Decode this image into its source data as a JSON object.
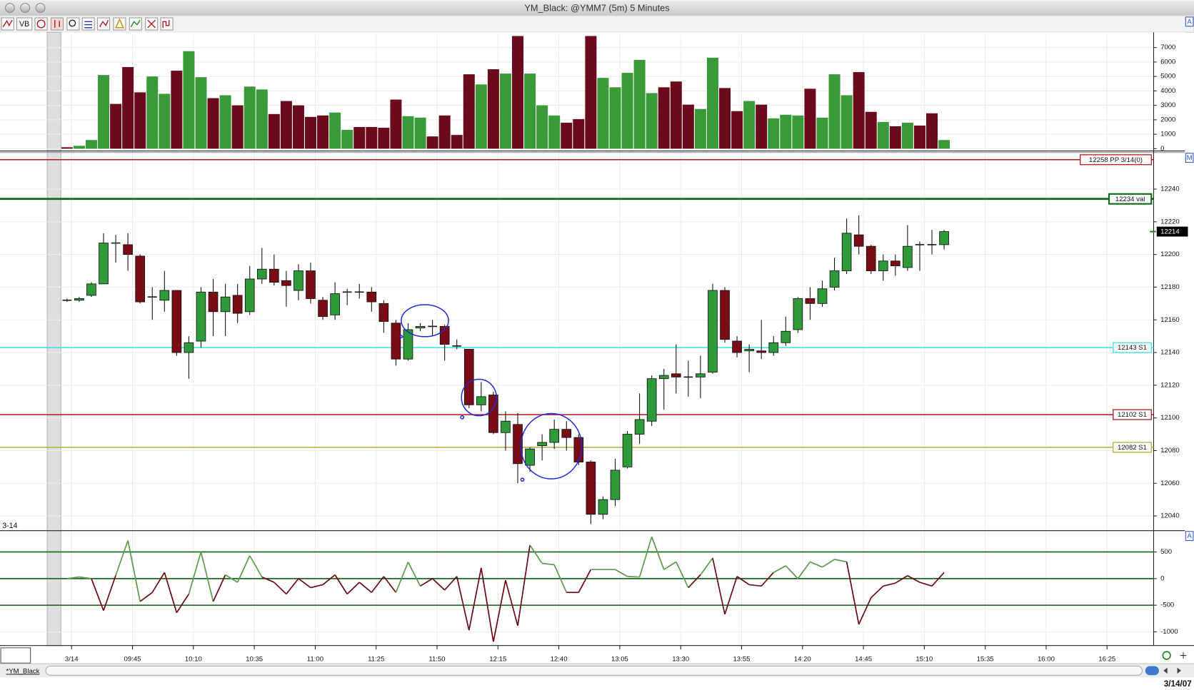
{
  "window": {
    "title": "YM_Black: @YMM7 (5m) 5 Minutes",
    "toolbar_label": "VB",
    "tab": "*YM_Black",
    "date": "3/14/07",
    "session_marker": "3-14",
    "panel_buttons": [
      "A",
      "M",
      "A"
    ]
  },
  "chart_data": [
    {
      "type": "bar",
      "xlim": [
        -0.5,
        89.2
      ],
      "ylim": [
        0,
        7900
      ],
      "yticks": [
        0,
        1000,
        2000,
        3000,
        4000,
        5000,
        6000,
        7000
      ],
      "grid": true,
      "values": [
        100,
        200,
        600,
        5100,
        3100,
        5650,
        3900,
        5000,
        3800,
        5400,
        6750,
        4950,
        3500,
        3700,
        3000,
        4300,
        4100,
        2400,
        3300,
        3000,
        2200,
        2300,
        2500,
        1300,
        1500,
        1500,
        1450,
        3400,
        2250,
        2150,
        850,
        2300,
        950,
        5150,
        4450,
        5500,
        5200,
        7800,
        5200,
        3000,
        2300,
        1800,
        2050,
        7800,
        4900,
        4250,
        5250,
        6150,
        3850,
        4250,
        4650,
        3050,
        2750,
        6300,
        4200,
        2600,
        3300,
        3050,
        2100,
        2350,
        2300,
        4150,
        2150,
        5150,
        3700,
        5300,
        2550,
        1850,
        1550,
        1800,
        1600,
        2450,
        600
      ],
      "colors": [
        "#6a0a1a",
        "#3a9a3a",
        "#3a9a3a",
        "#3a9a3a",
        "#6a0a1a",
        "#6a0a1a",
        "#6a0a1a",
        "#3a9a3a",
        "#3a9a3a",
        "#6a0a1a",
        "#3a9a3a",
        "#3a9a3a",
        "#6a0a1a",
        "#3a9a3a",
        "#6a0a1a",
        "#3a9a3a",
        "#3a9a3a",
        "#6a0a1a",
        "#6a0a1a",
        "#6a0a1a",
        "#6a0a1a",
        "#6a0a1a",
        "#3a9a3a",
        "#3a9a3a",
        "#6a0a1a",
        "#6a0a1a",
        "#6a0a1a",
        "#6a0a1a",
        "#3a9a3a",
        "#3a9a3a",
        "#6a0a1a",
        "#6a0a1a",
        "#6a0a1a",
        "#6a0a1a",
        "#3a9a3a",
        "#6a0a1a",
        "#3a9a3a",
        "#6a0a1a",
        "#3a9a3a",
        "#3a9a3a",
        "#3a9a3a",
        "#6a0a1a",
        "#6a0a1a",
        "#6a0a1a",
        "#3a9a3a",
        "#3a9a3a",
        "#3a9a3a",
        "#3a9a3a",
        "#3a9a3a",
        "#6a0a1a",
        "#6a0a1a",
        "#6a0a1a",
        "#3a9a3a",
        "#3a9a3a",
        "#6a0a1a",
        "#6a0a1a",
        "#3a9a3a",
        "#6a0a1a",
        "#3a9a3a",
        "#3a9a3a",
        "#3a9a3a",
        "#6a0a1a",
        "#3a9a3a",
        "#3a9a3a",
        "#3a9a3a",
        "#6a0a1a",
        "#6a0a1a",
        "#3a9a3a",
        "#6a0a1a",
        "#3a9a3a",
        "#6a0a1a",
        "#6a0a1a",
        "#3a9a3a"
      ]
    },
    {
      "type": "candlestick",
      "xlim": [
        -0.5,
        89.2
      ],
      "ylim": [
        12031,
        12261
      ],
      "yticks": [
        12040,
        12060,
        12080,
        12100,
        12120,
        12140,
        12160,
        12180,
        12200,
        12220,
        12240
      ],
      "grid": true,
      "up_color": "#2f9a3a",
      "down_color": "#7a0c16",
      "open": [
        12172,
        12172,
        12175,
        12182,
        12207,
        12206,
        12199,
        12174,
        12172,
        12178,
        12140,
        12147,
        12177,
        12165,
        12175,
        12165,
        12185,
        12191,
        12184,
        12178,
        12190,
        12172,
        12163,
        12177,
        12177,
        12177,
        12170,
        12158,
        12136,
        12155,
        12156,
        12156,
        12144,
        12142,
        12108,
        12114,
        12091,
        12096,
        12071,
        12083,
        12085,
        12093,
        12088,
        12073,
        12041,
        12050,
        12070,
        12090,
        12098,
        12124,
        12127,
        12125,
        12125,
        12128,
        12178,
        12147,
        12141,
        12141,
        12140,
        12146,
        12154,
        12173,
        12170,
        12180,
        12190,
        12212,
        12205,
        12190,
        12196,
        12192,
        12206,
        12206,
        12206
      ],
      "high": [
        12173,
        12174,
        12183,
        12213,
        12212,
        12213,
        12200,
        12180,
        12190,
        12178,
        12150,
        12180,
        12185,
        12182,
        12182,
        12193,
        12204,
        12200,
        12190,
        12194,
        12195,
        12174,
        12183,
        12179,
        12182,
        12180,
        12172,
        12160,
        12158,
        12158,
        12160,
        12157,
        12148,
        12142,
        12122,
        12116,
        12104,
        12103,
        12082,
        12090,
        12099,
        12098,
        12090,
        12074,
        12052,
        12075,
        12092,
        12115,
        12126,
        12130,
        12145,
        12135,
        12138,
        12182,
        12180,
        12150,
        12145,
        12160,
        12150,
        12162,
        12174,
        12180,
        12184,
        12198,
        12222,
        12224,
        12206,
        12200,
        12200,
        12218,
        12208,
        12215,
        12215
      ],
      "low": [
        12171,
        12171,
        12174,
        12182,
        12195,
        12190,
        12170,
        12160,
        12165,
        12138,
        12124,
        12143,
        12150,
        12150,
        12158,
        12163,
        12182,
        12181,
        12168,
        12172,
        12170,
        12160,
        12160,
        12169,
        12173,
        12165,
        12152,
        12132,
        12135,
        12153,
        12150,
        12135,
        12142,
        12106,
        12104,
        12090,
        12080,
        12060,
        12067,
        12074,
        12081,
        12080,
        12071,
        12035,
        12038,
        12046,
        12069,
        12084,
        12095,
        12105,
        12115,
        12113,
        12112,
        12127,
        12146,
        12137,
        12128,
        12136,
        12138,
        12144,
        12152,
        12160,
        12168,
        12178,
        12188,
        12200,
        12188,
        12184,
        12187,
        12190,
        12190,
        12200,
        12203
      ],
      "close": [
        12172,
        12173,
        12182,
        12207,
        12207,
        12200,
        12171,
        12174,
        12178,
        12140,
        12146,
        12177,
        12165,
        12174,
        12164,
        12185,
        12191,
        12183,
        12181,
        12190,
        12173,
        12162,
        12176,
        12177,
        12177,
        12171,
        12159,
        12136,
        12154,
        12156,
        12156,
        12145,
        12144,
        12108,
        12113,
        12091,
        12098,
        12072,
        12081,
        12085,
        12093,
        12088,
        12073,
        12041,
        12050,
        12068,
        12090,
        12099,
        12124,
        12126,
        12125,
        12125,
        12127,
        12178,
        12148,
        12140,
        12142,
        12140,
        12146,
        12153,
        12173,
        12170,
        12179,
        12190,
        12213,
        12205,
        12190,
        12196,
        12193,
        12205,
        12206,
        12206,
        12214
      ],
      "levels": [
        {
          "value": 12258,
          "label": "12258 PP 3/14(0)",
          "color": "#b3161c"
        },
        {
          "value": 12234,
          "label": "12234 val",
          "color": "#0d6b12"
        },
        {
          "value": 12143,
          "label": "12143 S1",
          "color": "#34e0e8"
        },
        {
          "value": 12102,
          "label": "12102 S1",
          "color": "#b3161c"
        },
        {
          "value": 12082,
          "label": "12082 S1",
          "color": "#b8ac3a"
        }
      ],
      "last_price": 12214
    },
    {
      "type": "line",
      "xlim": [
        -0.5,
        89.2
      ],
      "ylim": [
        -1257,
        857
      ],
      "yticks": [
        500,
        0,
        -500,
        -1000
      ],
      "levels": [
        500,
        0,
        -500
      ],
      "level_color": "#1d6b1d",
      "positive_color": "#5a9a4e",
      "negative_color": "#6a0a12",
      "grid": true,
      "values": [
        0,
        30,
        0,
        -600,
        60,
        714,
        -430,
        -260,
        115,
        -640,
        -290,
        500,
        -430,
        70,
        -70,
        430,
        30,
        -70,
        -290,
        0,
        -170,
        -115,
        70,
        -290,
        -70,
        -260,
        40,
        -260,
        310,
        -140,
        0,
        -215,
        40,
        -970,
        200,
        -1185,
        -30,
        -885,
        630,
        285,
        260,
        -260,
        -260,
        170,
        170,
        170,
        40,
        30,
        785,
        170,
        315,
        -170,
        70,
        385,
        -670,
        40,
        -115,
        -140,
        115,
        240,
        0,
        315,
        215,
        360,
        315,
        -860,
        -360,
        -140,
        -85,
        55,
        -70,
        -140,
        115
      ],
      "xticks": [
        {
          "value": 0,
          "label": "3/14"
        },
        {
          "value": 5,
          "label": "09:45"
        },
        {
          "value": 10,
          "label": "10:10"
        },
        {
          "value": 15,
          "label": "10:35"
        },
        {
          "value": 20,
          "label": "11:00"
        },
        {
          "value": 25,
          "label": "11:25"
        },
        {
          "value": 30,
          "label": "11:50"
        },
        {
          "value": 35,
          "label": "12:15"
        },
        {
          "value": 40,
          "label": "12:40"
        },
        {
          "value": 45,
          "label": "13:05"
        },
        {
          "value": 50,
          "label": "13:30"
        },
        {
          "value": 55,
          "label": "13:55"
        },
        {
          "value": 60,
          "label": "14:20"
        },
        {
          "value": 65,
          "label": "14:45"
        },
        {
          "value": 70,
          "label": "15:10"
        },
        {
          "value": 75,
          "label": "15:35"
        },
        {
          "value": 80,
          "label": "16:00"
        },
        {
          "value": 85,
          "label": "16:25"
        }
      ]
    }
  ]
}
